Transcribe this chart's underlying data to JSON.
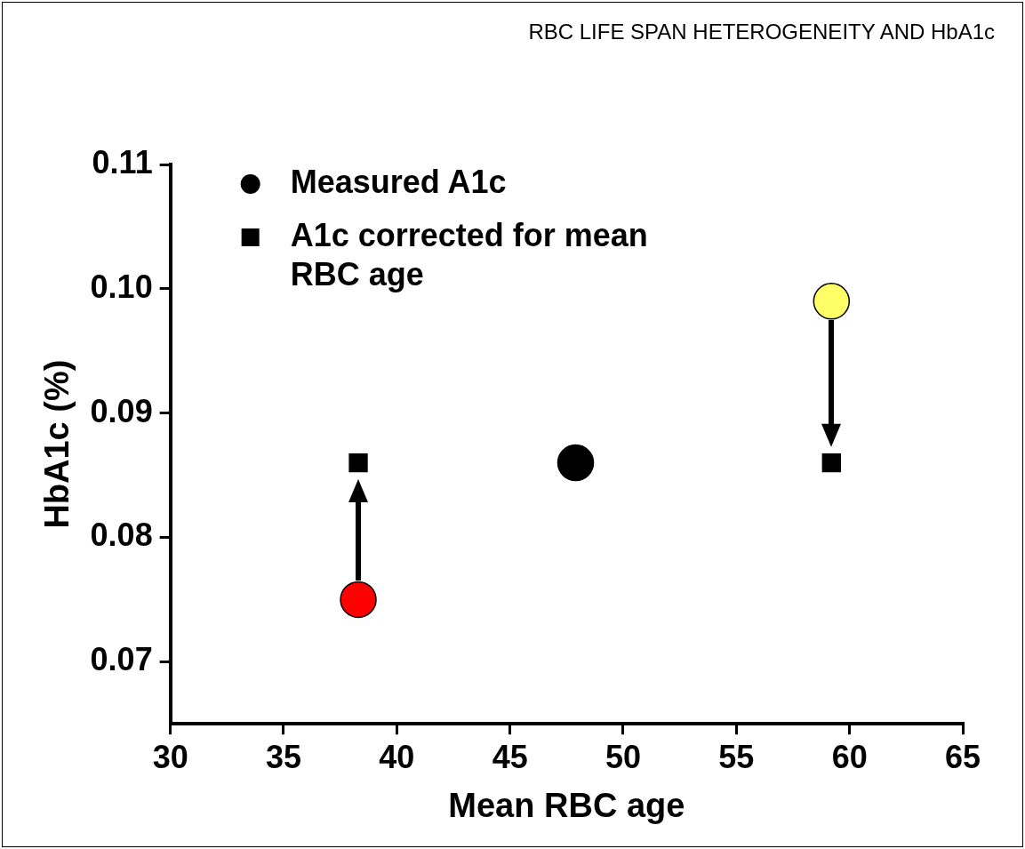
{
  "chart_data": {
    "type": "scatter",
    "title": "RBC LIFE SPAN HETEROGENEITY AND HbA1c",
    "xlabel": "Mean RBC age",
    "ylabel": "HbA1c (%)",
    "xlim": [
      30,
      65
    ],
    "xticks": [
      30,
      35,
      40,
      45,
      50,
      55,
      60,
      65
    ],
    "ylim": [
      0.065,
      0.11
    ],
    "yticks": [
      0.07,
      0.08,
      0.09,
      {
        "value": 0.1,
        "label": "0.10"
      },
      0.11
    ],
    "grid": false,
    "legend": "top left",
    "series": [
      {
        "name": "Measured A1c",
        "marker": "circle",
        "color": "#000000",
        "colors": [
          "#ff0000",
          "#000000",
          "#ffff66"
        ],
        "x": [
          38.3,
          47.9,
          59.2
        ],
        "values": [
          0.075,
          0.086,
          0.099
        ]
      },
      {
        "name": "A1c corrected for mean RBC age",
        "marker": "square",
        "color": "#000000",
        "x": [
          38.3,
          59.2
        ],
        "values": [
          0.086,
          0.086
        ]
      }
    ]
  }
}
